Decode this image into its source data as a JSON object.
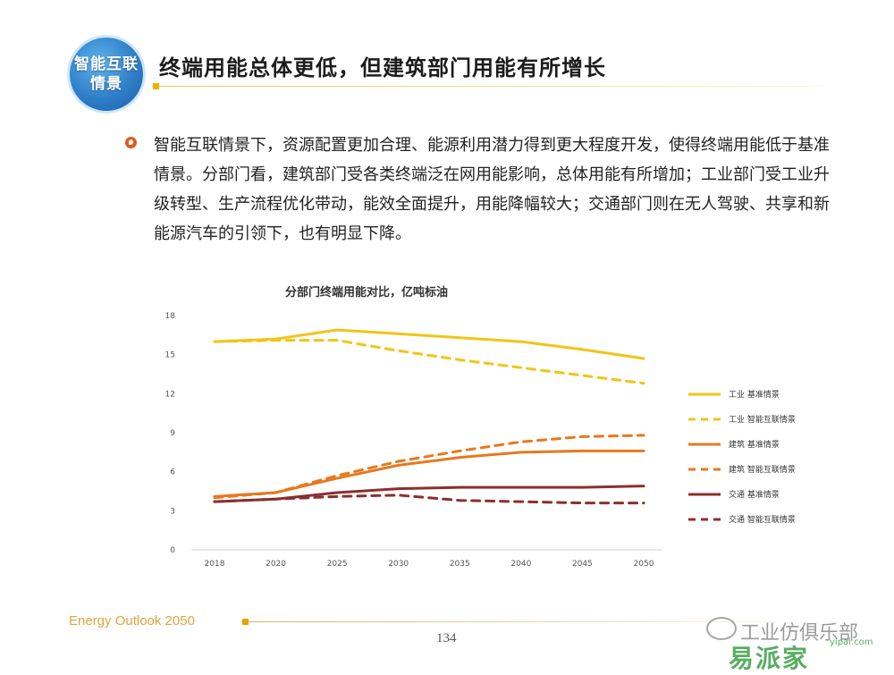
{
  "header": {
    "logo_line1": "智能互联",
    "logo_line2": "情景",
    "title": "终端用能总体更低，但建筑部门用能有所增长"
  },
  "body": {
    "paragraph": "智能互联情景下，资源配置更加合理、能源利用潜力得到更大程度开发，使得终端用能低于基准情景。分部门看，建筑部门受各类终端泛在网用能影响，总体用能有所增加；工业部门受工业升级转型、生产流程优化带动，能效全面提升，用能降幅较大；交通部门则在无人驾驶、共享和新能源汽车的引领下，也有明显下降。"
  },
  "footer": {
    "brand": "Energy Outlook 2050",
    "page": "134"
  },
  "watermark": {
    "text": "工业仿俱乐部",
    "logo": "易派家",
    "url": "yipai.com"
  },
  "colors": {
    "industry": "#f2c417",
    "building": "#e8781e",
    "transport": "#8b2f2f",
    "title_accent": "#e8b400"
  },
  "chart_data": {
    "type": "line",
    "title": "分部门终端用能对比，亿吨标油",
    "x": [
      "2018",
      "2020",
      "2025",
      "2030",
      "2035",
      "2040",
      "2045",
      "2050"
    ],
    "ylim": [
      0,
      18
    ],
    "yticks": [
      0,
      3,
      6,
      9,
      12,
      15,
      18
    ],
    "grid": false,
    "legend": "right",
    "series": [
      {
        "name": "工业 基准情景",
        "dash": false,
        "color": "#f2c417",
        "values": [
          16.0,
          16.2,
          16.9,
          16.6,
          16.3,
          16.0,
          15.4,
          14.7
        ]
      },
      {
        "name": "工业 智能互联情景",
        "dash": true,
        "color": "#f2c417",
        "values": [
          16.0,
          16.1,
          16.1,
          15.3,
          14.6,
          14.0,
          13.4,
          12.8
        ]
      },
      {
        "name": "建筑 基准情景",
        "dash": false,
        "color": "#e8781e",
        "values": [
          4.1,
          4.4,
          5.5,
          6.5,
          7.1,
          7.5,
          7.6,
          7.6
        ]
      },
      {
        "name": "建筑 智能互联情景",
        "dash": true,
        "color": "#e8781e",
        "values": [
          4.0,
          4.4,
          5.7,
          6.8,
          7.6,
          8.3,
          8.7,
          8.8
        ]
      },
      {
        "name": "交通 基准情景",
        "dash": false,
        "color": "#8b2f2f",
        "values": [
          3.7,
          3.9,
          4.4,
          4.7,
          4.8,
          4.8,
          4.8,
          4.9
        ]
      },
      {
        "name": "交通 智能互联情景",
        "dash": true,
        "color": "#8b2f2f",
        "values": [
          3.7,
          3.9,
          4.1,
          4.2,
          3.8,
          3.7,
          3.6,
          3.6
        ]
      }
    ]
  }
}
